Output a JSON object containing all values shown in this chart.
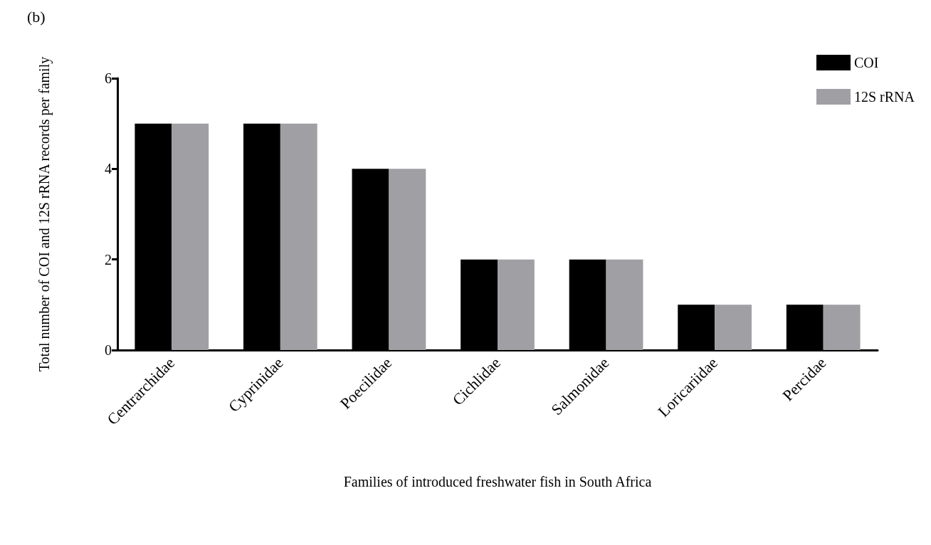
{
  "chart_data": {
    "type": "bar",
    "categories": [
      "Centrarchidae",
      "Cyprinidae",
      "Poecilidae",
      "Cichlidae",
      "Salmonidae",
      "Loricariidae",
      "Percidae"
    ],
    "series": [
      {
        "name": "COI",
        "color": "#000000",
        "values": [
          5,
          5,
          4,
          2,
          2,
          1,
          1
        ]
      },
      {
        "name": "12S rRNA",
        "color": "#a0a0a4",
        "values": [
          5,
          5,
          4,
          2,
          2,
          1,
          1
        ]
      }
    ],
    "xlabel": "Families of introduced freshwater fish in South Africa",
    "ylabel": "Total number of COI and 12S rRNA records per family",
    "ylim": [
      0,
      6
    ],
    "yticks": [
      0,
      2,
      4,
      6
    ],
    "annotations": [
      "(b)"
    ],
    "grid": false,
    "legend": "top right"
  }
}
